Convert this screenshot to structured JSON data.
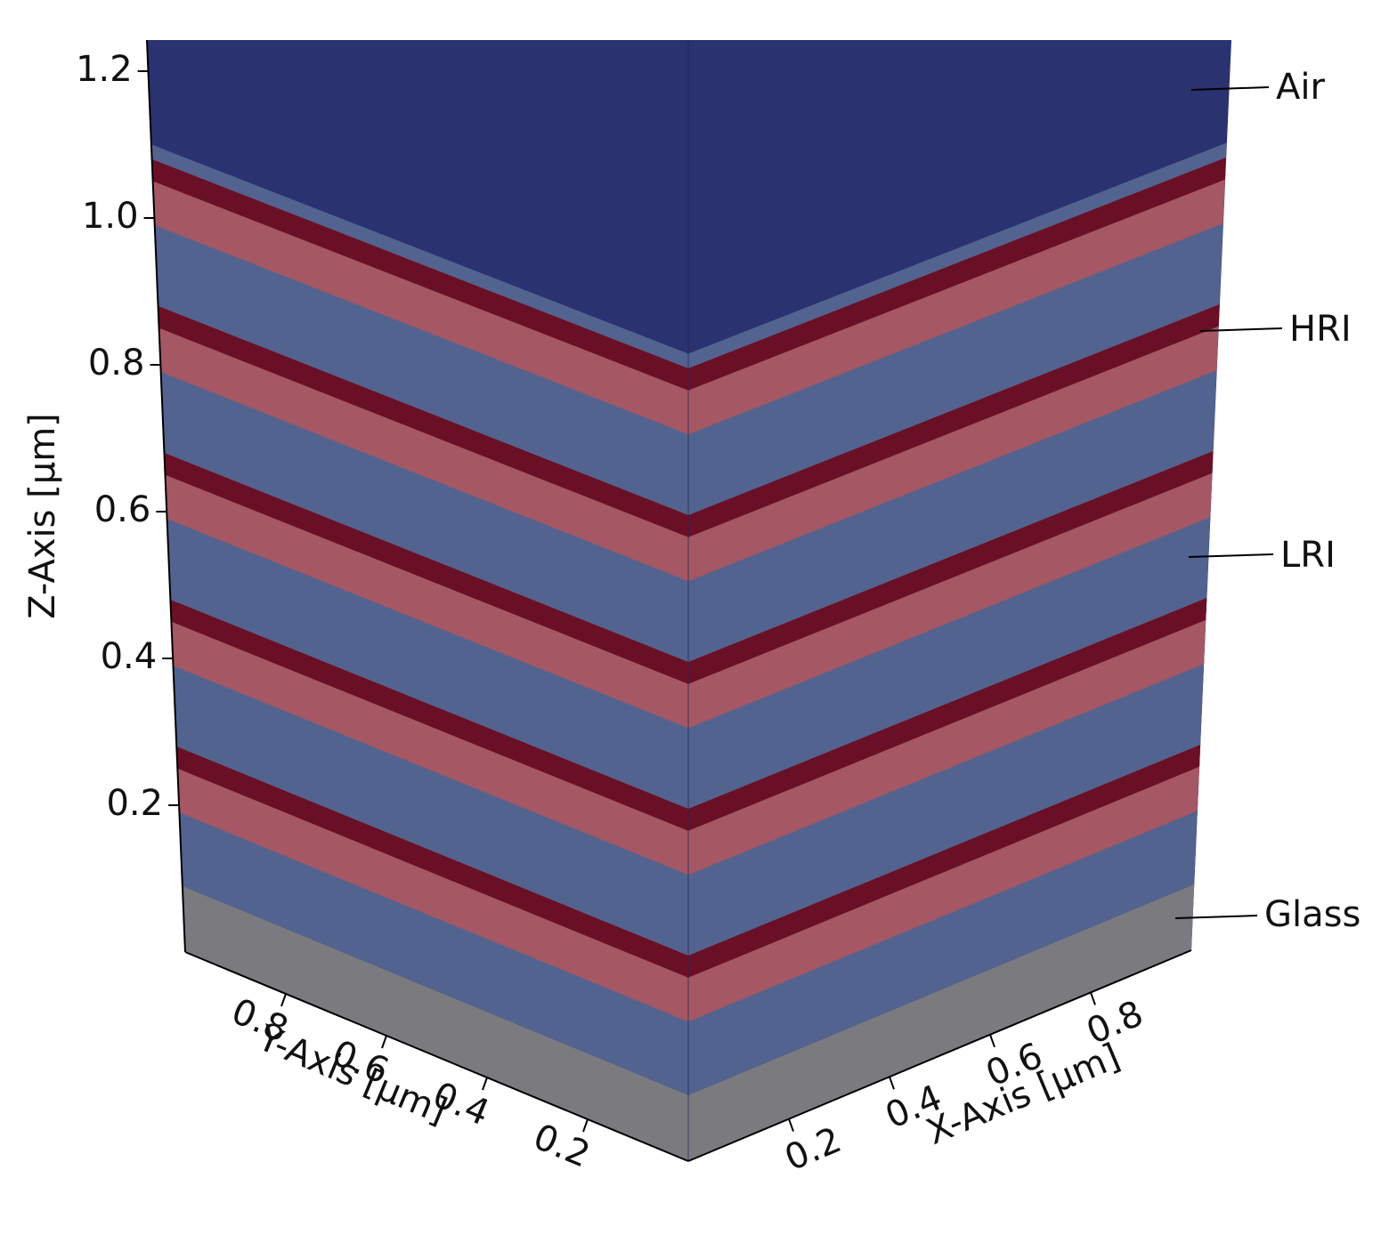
{
  "axes": {
    "z": {
      "label": "Z-Axis [µm]",
      "ticks": [
        0.2,
        0.4,
        0.6,
        0.8,
        {
          "value": 1,
          "label": "1.0"
        },
        1.2
      ]
    },
    "y": {
      "label": "Y-Axis [µm]",
      "ticks": [
        0.2,
        0.4,
        0.6,
        0.8
      ]
    },
    "x": {
      "label": "X-Axis [µm]",
      "ticks": [
        0.2,
        0.4,
        0.6,
        0.8
      ]
    }
  },
  "layers": [
    "Air",
    "HRI",
    "LRI",
    "Glass"
  ]
}
